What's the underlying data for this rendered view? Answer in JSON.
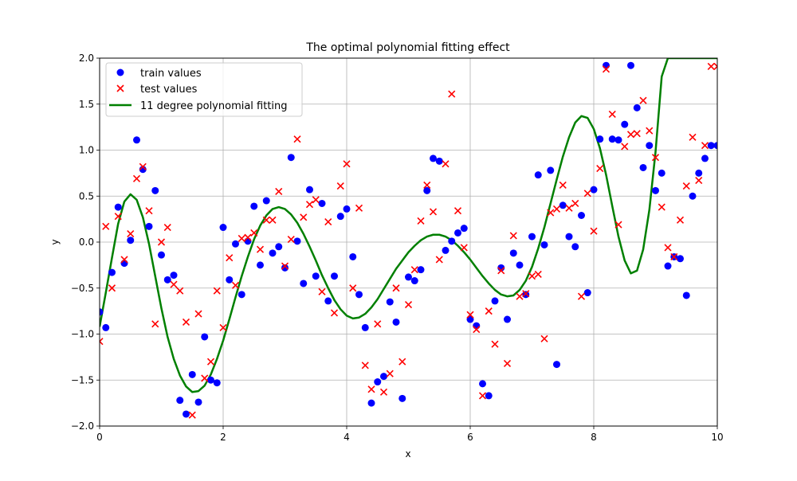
{
  "chart_data": {
    "type": "scatter",
    "title": "The optimal polynomial fitting effect",
    "xlabel": "x",
    "ylabel": "y",
    "xlim": [
      0,
      10
    ],
    "ylim": [
      -2.0,
      2.0
    ],
    "grid": true,
    "legend_position": "top-left",
    "x_ticks": [
      0,
      2,
      4,
      6,
      8,
      10
    ],
    "x_tick_labels": [
      "0",
      "2",
      "4",
      "6",
      "8",
      "10"
    ],
    "y_ticks": [
      -2.0,
      -1.5,
      -1.0,
      -0.5,
      0.0,
      0.5,
      1.0,
      1.5,
      2.0
    ],
    "y_tick_labels": [
      "−2.0",
      "−1.5",
      "−1.0",
      "−0.5",
      "0.0",
      "0.5",
      "1.0",
      "1.5",
      "2.0"
    ],
    "series": [
      {
        "name": "train values",
        "kind": "scatter",
        "marker": "circle",
        "color": "#0000ff",
        "x": [
          0.0,
          0.1,
          0.2,
          0.3,
          0.4,
          0.5,
          0.6,
          0.7,
          0.8,
          0.9,
          1.0,
          1.1,
          1.2,
          1.3,
          1.4,
          1.5,
          1.6,
          1.7,
          1.8,
          1.9,
          2.0,
          2.1,
          2.2,
          2.3,
          2.4,
          2.5,
          2.6,
          2.7,
          2.8,
          2.9,
          3.0,
          3.1,
          3.2,
          3.3,
          3.4,
          3.5,
          3.6,
          3.7,
          3.8,
          3.9,
          4.0,
          4.1,
          4.2,
          4.3,
          4.4,
          4.5,
          4.6,
          4.7,
          4.8,
          4.9,
          5.0,
          5.1,
          5.2,
          5.3,
          5.4,
          5.5,
          5.6,
          5.7,
          5.8,
          5.9,
          6.0,
          6.1,
          6.2,
          6.3,
          6.4,
          6.5,
          6.6,
          6.7,
          6.8,
          6.9,
          7.0,
          7.1,
          7.2,
          7.3,
          7.4,
          7.5,
          7.6,
          7.7,
          7.8,
          7.9,
          8.0,
          8.1,
          8.2,
          8.3,
          8.4,
          8.5,
          8.6,
          8.7,
          8.8,
          8.9,
          9.0,
          9.1,
          9.2,
          9.3,
          9.4,
          9.5,
          9.6,
          9.7,
          9.8,
          9.9,
          10.0
        ],
        "y": [
          -0.76,
          -0.93,
          -0.33,
          0.38,
          -0.23,
          0.02,
          1.11,
          0.79,
          0.17,
          0.56,
          -0.14,
          -0.41,
          -0.36,
          -1.72,
          -1.87,
          -1.44,
          -1.74,
          -1.03,
          -1.5,
          -1.53,
          0.16,
          -0.41,
          -0.02,
          -0.57,
          0.01,
          0.39,
          -0.25,
          0.45,
          -0.12,
          -0.05,
          -0.28,
          0.92,
          0.01,
          -0.45,
          0.57,
          -0.37,
          0.42,
          -0.64,
          -0.37,
          0.28,
          0.36,
          -0.16,
          -0.57,
          -0.93,
          -1.75,
          -1.52,
          -1.46,
          -0.65,
          -0.87,
          -1.7,
          -0.38,
          -0.42,
          -0.3,
          0.56,
          0.91,
          0.88,
          -0.09,
          0.01,
          0.1,
          0.15,
          -0.84,
          -0.91,
          -1.54,
          -1.67,
          -0.64,
          -0.28,
          -0.84,
          -0.12,
          -0.25,
          -0.57,
          0.06,
          0.73,
          -0.03,
          0.78,
          -1.33,
          0.4,
          0.06,
          -0.05,
          0.29,
          -0.55,
          0.57,
          1.12,
          1.92,
          1.12,
          1.11,
          1.28,
          1.92,
          1.46,
          0.81,
          1.05,
          0.56,
          0.75,
          -0.26,
          -0.16,
          -0.18,
          -0.58,
          0.5,
          0.75,
          0.91,
          1.05,
          1.05
        ]
      },
      {
        "name": "test values",
        "kind": "scatter",
        "marker": "x",
        "color": "#ff0000",
        "x": [
          0.0,
          0.1,
          0.2,
          0.3,
          0.4,
          0.5,
          0.6,
          0.7,
          0.8,
          0.9,
          1.0,
          1.1,
          1.2,
          1.3,
          1.4,
          1.5,
          1.6,
          1.7,
          1.8,
          1.9,
          2.0,
          2.1,
          2.2,
          2.3,
          2.4,
          2.5,
          2.6,
          2.7,
          2.8,
          2.9,
          3.0,
          3.1,
          3.2,
          3.3,
          3.4,
          3.5,
          3.6,
          3.7,
          3.8,
          3.9,
          4.0,
          4.1,
          4.2,
          4.3,
          4.4,
          4.5,
          4.6,
          4.7,
          4.8,
          4.9,
          5.0,
          5.1,
          5.2,
          5.3,
          5.4,
          5.5,
          5.6,
          5.7,
          5.8,
          5.9,
          6.0,
          6.1,
          6.2,
          6.3,
          6.4,
          6.5,
          6.6,
          6.7,
          6.8,
          6.9,
          7.0,
          7.1,
          7.2,
          7.3,
          7.4,
          7.5,
          7.6,
          7.7,
          7.8,
          7.9,
          8.0,
          8.1,
          8.2,
          8.3,
          8.4,
          8.5,
          8.6,
          8.7,
          8.8,
          8.9,
          9.0,
          9.1,
          9.2,
          9.3,
          9.4,
          9.5,
          9.6,
          9.7,
          9.8,
          9.9,
          10.0
        ],
        "y": [
          -1.08,
          0.17,
          -0.5,
          0.28,
          -0.19,
          0.09,
          0.69,
          0.82,
          0.34,
          -0.89,
          0.0,
          0.16,
          -0.46,
          -0.53,
          -0.87,
          -1.88,
          -0.78,
          -1.48,
          -1.3,
          -0.53,
          -0.93,
          -0.17,
          -0.47,
          0.04,
          0.05,
          0.1,
          -0.08,
          0.24,
          0.24,
          0.55,
          -0.26,
          0.03,
          1.12,
          0.27,
          0.41,
          0.46,
          -0.54,
          0.22,
          -0.77,
          0.61,
          0.85,
          -0.5,
          0.37,
          -1.34,
          -1.6,
          -0.89,
          -1.63,
          -1.43,
          -0.5,
          -1.3,
          -0.68,
          -0.3,
          0.23,
          0.62,
          0.33,
          -0.19,
          0.85,
          1.61,
          0.34,
          -0.06,
          -0.79,
          -0.95,
          -1.67,
          -0.75,
          -1.11,
          -0.31,
          -1.32,
          0.07,
          -0.59,
          -0.56,
          -0.37,
          -0.35,
          -1.05,
          0.32,
          0.36,
          0.62,
          0.37,
          0.42,
          -0.59,
          0.53,
          0.12,
          0.8,
          1.88,
          1.39,
          0.19,
          1.04,
          1.17,
          1.18,
          1.54,
          1.21,
          0.92,
          0.38,
          -0.06,
          -0.16,
          0.24,
          0.61,
          1.14,
          0.67,
          1.05,
          1.91,
          1.91
        ]
      },
      {
        "name": "11 degree polynomial fitting",
        "kind": "line",
        "color": "#008000",
        "x": [
          0.0,
          0.1,
          0.2,
          0.3,
          0.4,
          0.5,
          0.6,
          0.7,
          0.8,
          0.9,
          1.0,
          1.1,
          1.2,
          1.3,
          1.4,
          1.5,
          1.6,
          1.7,
          1.8,
          1.9,
          2.0,
          2.1,
          2.2,
          2.3,
          2.4,
          2.5,
          2.6,
          2.7,
          2.8,
          2.9,
          3.0,
          3.1,
          3.2,
          3.3,
          3.4,
          3.5,
          3.6,
          3.7,
          3.8,
          3.9,
          4.0,
          4.1,
          4.2,
          4.3,
          4.4,
          4.5,
          4.6,
          4.7,
          4.8,
          4.9,
          5.0,
          5.1,
          5.2,
          5.3,
          5.4,
          5.5,
          5.6,
          5.7,
          5.8,
          5.9,
          6.0,
          6.1,
          6.2,
          6.3,
          6.4,
          6.5,
          6.6,
          6.7,
          6.8,
          6.9,
          7.0,
          7.1,
          7.2,
          7.3,
          7.4,
          7.5,
          7.6,
          7.7,
          7.8,
          7.9,
          8.0,
          8.1,
          8.2,
          8.3,
          8.4,
          8.5,
          8.6,
          8.7,
          8.8,
          8.9,
          9.0,
          9.1,
          9.2,
          9.3,
          9.4,
          9.5,
          9.6,
          9.7,
          9.8,
          9.9,
          10.0
        ],
        "y": [
          -0.92,
          -0.55,
          -0.17,
          0.2,
          0.44,
          0.52,
          0.46,
          0.27,
          -0.02,
          -0.37,
          -0.72,
          -1.03,
          -1.27,
          -1.45,
          -1.57,
          -1.63,
          -1.62,
          -1.56,
          -1.44,
          -1.27,
          -1.07,
          -0.84,
          -0.6,
          -0.37,
          -0.16,
          0.03,
          0.18,
          0.29,
          0.36,
          0.38,
          0.36,
          0.3,
          0.21,
          0.09,
          -0.05,
          -0.2,
          -0.36,
          -0.5,
          -0.63,
          -0.73,
          -0.8,
          -0.83,
          -0.82,
          -0.78,
          -0.71,
          -0.62,
          -0.51,
          -0.4,
          -0.29,
          -0.2,
          -0.11,
          -0.04,
          0.02,
          0.06,
          0.08,
          0.08,
          0.06,
          0.02,
          -0.04,
          -0.11,
          -0.19,
          -0.28,
          -0.37,
          -0.45,
          -0.52,
          -0.57,
          -0.59,
          -0.58,
          -0.52,
          -0.42,
          -0.27,
          -0.07,
          0.16,
          0.42,
          0.68,
          0.93,
          1.14,
          1.3,
          1.37,
          1.35,
          1.23,
          1.02,
          0.73,
          0.39,
          0.06,
          -0.2,
          -0.34,
          -0.31,
          -0.08,
          0.35,
          0.98,
          1.8,
          2.0,
          2.0,
          2.0,
          2.0,
          2.0,
          2.0,
          2.0,
          2.0,
          2.0
        ]
      }
    ]
  }
}
